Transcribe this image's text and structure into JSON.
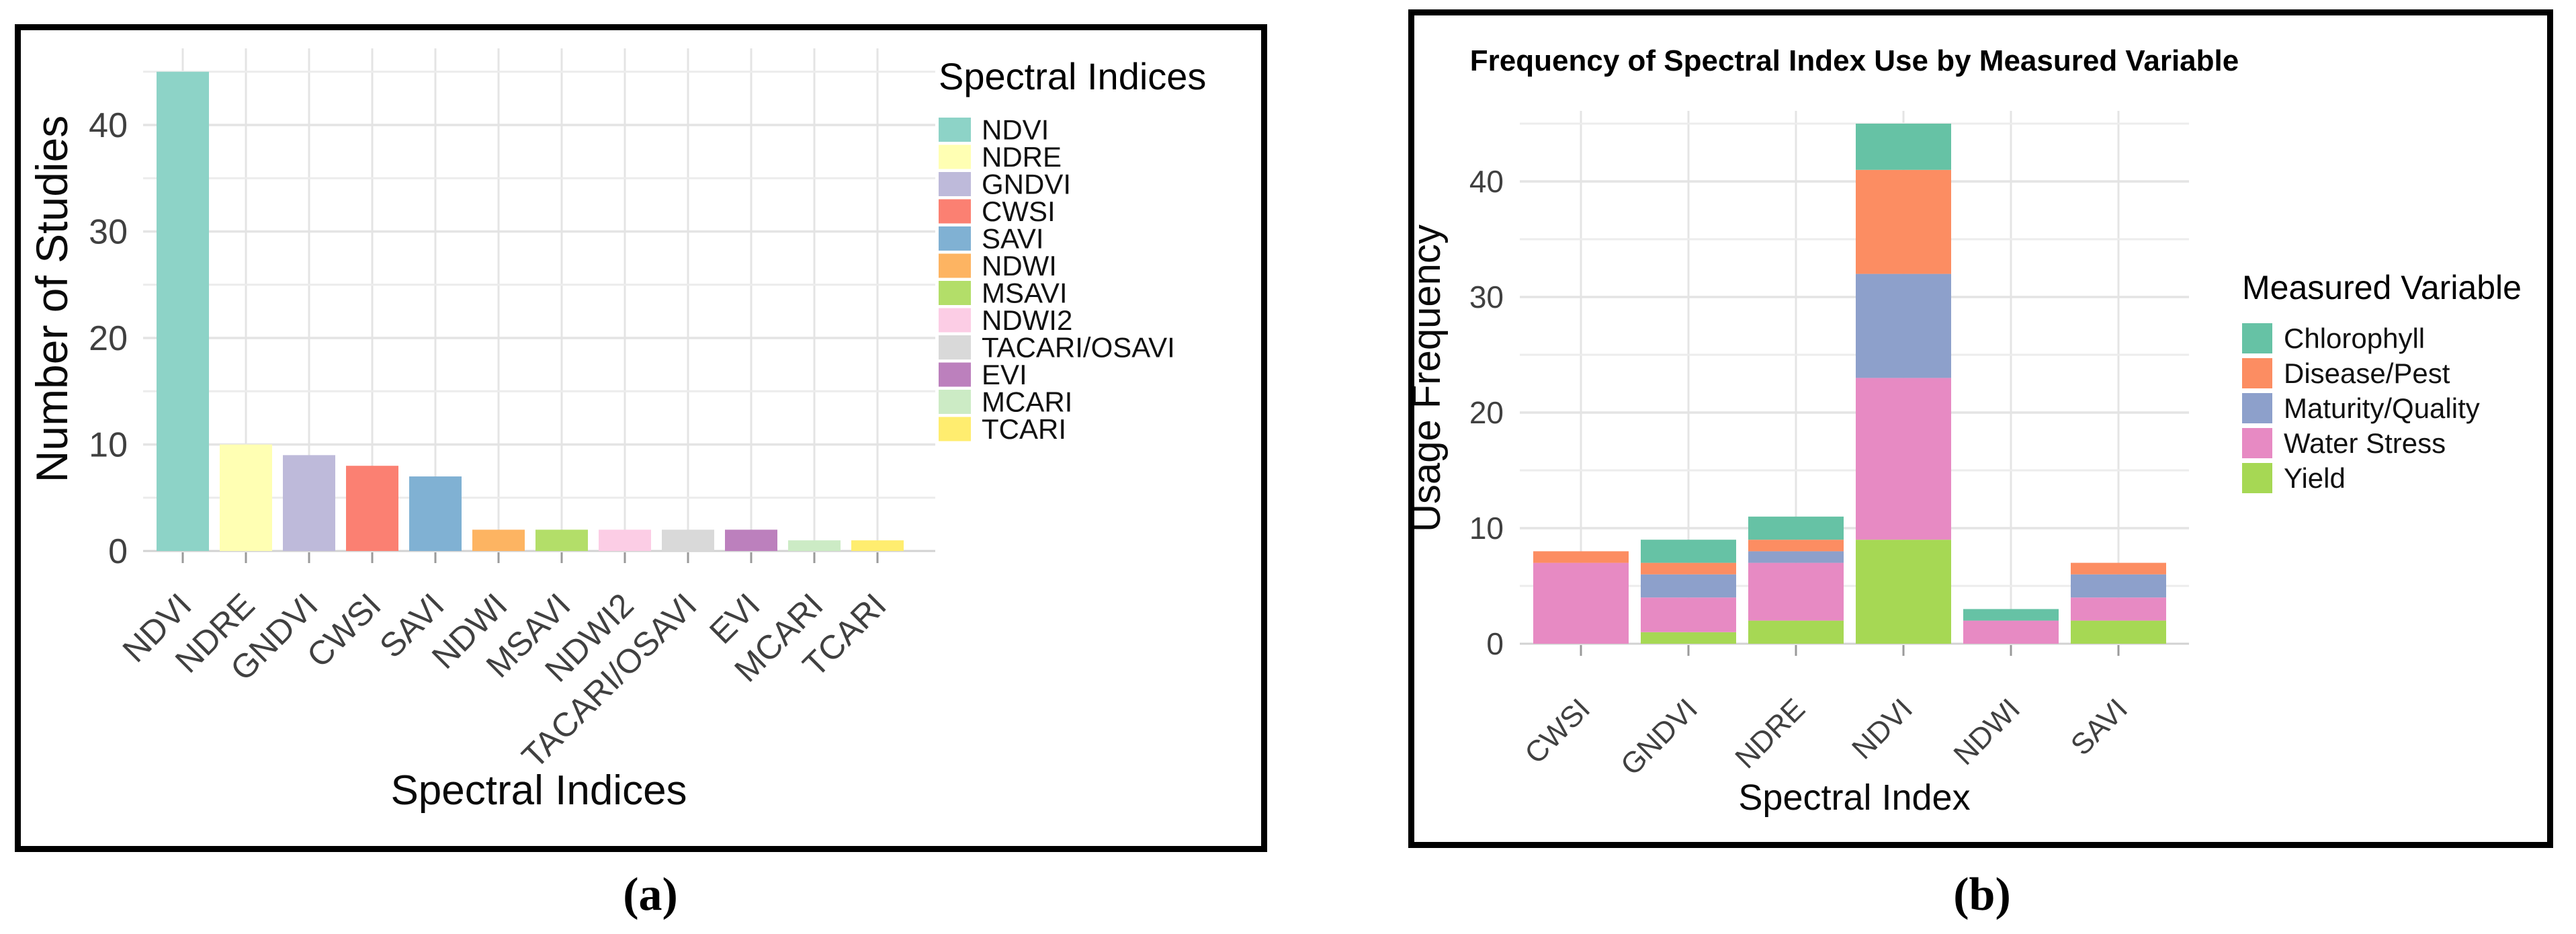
{
  "figure": {
    "caption_a": "(a)",
    "caption_b": "(b)"
  },
  "chart_data": [
    {
      "id": "a",
      "type": "bar",
      "title": "",
      "xlabel": "Spectral Indices",
      "ylabel": "Number of Studies",
      "legend_title": "Spectral Indices",
      "legend_position": "right",
      "grid": true,
      "ylim": [
        0,
        46
      ],
      "yticks": [
        0,
        10,
        20,
        30,
        40
      ],
      "categories": [
        "NDVI",
        "NDRE",
        "GNDVI",
        "CWSI",
        "SAVI",
        "NDWI",
        "MSAVI",
        "NDWI2",
        "TACARI/OSAVI",
        "EVI",
        "MCARI",
        "TCARI"
      ],
      "values": [
        45,
        10,
        9,
        8,
        7,
        2,
        2,
        2,
        2,
        2,
        1,
        1
      ],
      "colors": [
        "#8DD3C7",
        "#FFFFB3",
        "#BEBADA",
        "#FB8072",
        "#80B1D3",
        "#FDB462",
        "#B3DE69",
        "#FCCDE5",
        "#D9D9D9",
        "#BC80BD",
        "#CCEBC5",
        "#FFED6F"
      ]
    },
    {
      "id": "b",
      "type": "stacked-bar",
      "title": "Frequency of Spectral Index Use by Measured Variable",
      "xlabel": "Spectral Index",
      "ylabel": "Usage Frequency",
      "legend_title": "Measured Variable",
      "legend_position": "right",
      "grid": true,
      "ylim": [
        0,
        46
      ],
      "yticks": [
        0,
        10,
        20,
        30,
        40
      ],
      "categories": [
        "CWSI",
        "GNDVI",
        "NDRE",
        "NDVI",
        "NDWI",
        "SAVI"
      ],
      "series": [
        {
          "name": "Chlorophyll",
          "color": "#66C2A5",
          "values": [
            0,
            2,
            2,
            4,
            1,
            0
          ]
        },
        {
          "name": "Disease/Pest",
          "color": "#FC8D62",
          "values": [
            1,
            1,
            1,
            9,
            0,
            1
          ]
        },
        {
          "name": "Maturity/Quality",
          "color": "#8DA0CB",
          "values": [
            0,
            2,
            1,
            9,
            0,
            2
          ]
        },
        {
          "name": "Water Stress",
          "color": "#E78AC3",
          "values": [
            7,
            3,
            5,
            14,
            2,
            2
          ]
        },
        {
          "name": "Yield",
          "color": "#A6D854",
          "values": [
            0,
            1,
            2,
            9,
            0,
            2
          ]
        }
      ],
      "stack_order_bottom_to_top": [
        "Yield",
        "Water Stress",
        "Maturity/Quality",
        "Disease/Pest",
        "Chlorophyll"
      ],
      "totals": {
        "CWSI": 8,
        "GNDVI": 9,
        "NDRE": 11,
        "NDVI": 45,
        "NDWI": 3,
        "SAVI": 7
      }
    }
  ],
  "style": {
    "grid_color": "#E4E4E4",
    "grid_minor_color": "#ECECEC",
    "baseline_color": "#D2D2D2",
    "tick_color": "#9A9A9A",
    "tick_label_color": "#404040",
    "axis_title_color": "#0a0a0a",
    "title_color": "#000000",
    "panel_bg": "#FFFFFF"
  }
}
